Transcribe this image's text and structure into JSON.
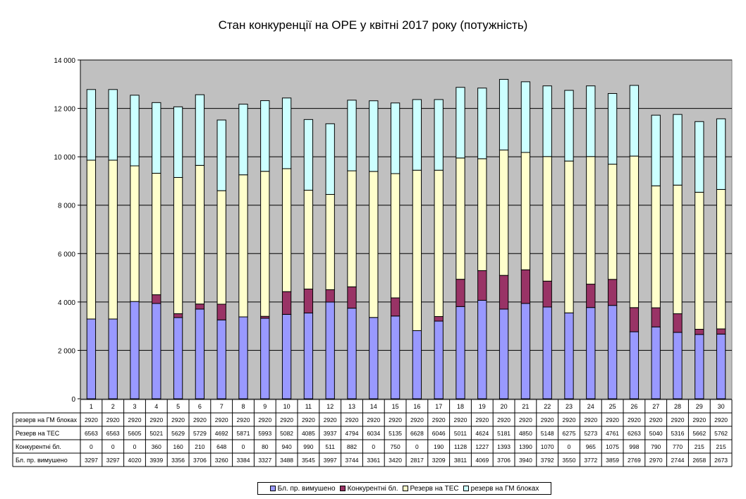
{
  "chart_data": {
    "type": "bar",
    "stacked": true,
    "title": "Стан конкуренції на ОРЕ  у квітні 2017 року (потужність)",
    "xlabel": "",
    "ylabel": "",
    "ylim": [
      0,
      14000
    ],
    "yticks": [
      0,
      2000,
      4000,
      6000,
      8000,
      10000,
      12000,
      14000
    ],
    "ytick_labels": [
      "0",
      "2 000",
      "4 000",
      "6 000",
      "8 000",
      "10 000",
      "12 000",
      "14 000"
    ],
    "grid": true,
    "legend_position": "bottom",
    "data_table": true,
    "plot_background": "#c0c0c0",
    "categories": [
      "1",
      "2",
      "3",
      "4",
      "5",
      "6",
      "7",
      "8",
      "9",
      "10",
      "11",
      "12",
      "13",
      "14",
      "15",
      "16",
      "17",
      "18",
      "19",
      "20",
      "21",
      "22",
      "23",
      "24",
      "25",
      "26",
      "27",
      "28",
      "29",
      "30"
    ],
    "series": [
      {
        "name": "Бл. пр. вимушено",
        "color": "#9999ff",
        "values": [
          3297,
          3297,
          4020,
          3939,
          3356,
          3706,
          3260,
          3384,
          3327,
          3488,
          3545,
          3997,
          3744,
          3361,
          3420,
          2817,
          3209,
          3811,
          4069,
          3706,
          3940,
          3792,
          3550,
          3772,
          3859,
          2769,
          2970,
          2744,
          2658,
          2673
        ]
      },
      {
        "name": "Конкурентні бл.",
        "color": "#993366",
        "values": [
          0,
          0,
          0,
          360,
          160,
          210,
          648,
          0,
          80,
          940,
          990,
          511,
          882,
          0,
          750,
          0,
          190,
          1128,
          1227,
          1393,
          1390,
          1070,
          0,
          965,
          1075,
          998,
          790,
          770,
          215,
          215
        ]
      },
      {
        "name": "Резерв на ТЕС",
        "color": "#ffffcc",
        "values": [
          6563,
          6563,
          5605,
          5021,
          5629,
          5729,
          4692,
          5871,
          5993,
          5082,
          4085,
          3937,
          4794,
          6034,
          5135,
          6628,
          6046,
          5011,
          4624,
          5181,
          4850,
          5148,
          6275,
          5273,
          4761,
          6263,
          5040,
          5316,
          5662,
          5762
        ]
      },
      {
        "name": "резерв на ГМ блоках",
        "color": "#ccffff",
        "values": [
          2920,
          2920,
          2920,
          2920,
          2920,
          2920,
          2920,
          2920,
          2920,
          2920,
          2920,
          2920,
          2920,
          2920,
          2920,
          2920,
          2920,
          2920,
          2920,
          2920,
          2920,
          2920,
          2920,
          2920,
          2920,
          2920,
          2920,
          2920,
          2920,
          2920
        ]
      }
    ],
    "table_rows": [
      {
        "label": "резерв на ГМ блоках",
        "series_index": 3
      },
      {
        "label": "Резерв на ТЕС",
        "series_index": 2
      },
      {
        "label": "Конкурентні бл.",
        "series_index": 1
      },
      {
        "label": "Бл. пр. вимушено",
        "series_index": 0
      }
    ]
  }
}
